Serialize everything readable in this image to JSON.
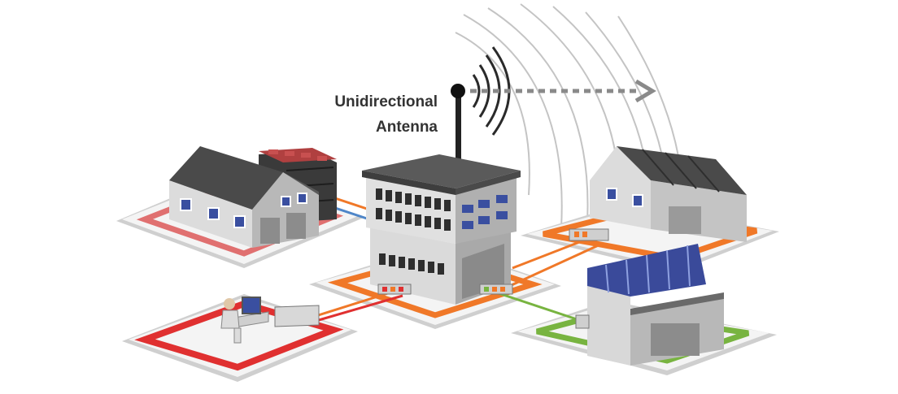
{
  "diagram": {
    "antenna_label": {
      "line1": "Unidirectional",
      "line2": "Antenna"
    }
  },
  "colors": {
    "building_front": "#d9d9d9",
    "building_side": "#a8a8a8",
    "roof": "#4a4a4a",
    "window": "#3a4fa0",
    "pad_top": "#f2f2f2",
    "pad_edge": "#9a9a9a",
    "red": "#e03030",
    "orange": "#f07828",
    "green": "#78b440",
    "blue_link": "#4f86c8",
    "solar": "#3a4a9a",
    "wave": "#bdbdbd",
    "arrow": "#8a8a8a",
    "antenna": "#222222"
  },
  "icons": {
    "antenna": "antenna-icon",
    "person": "person-at-computer-icon",
    "arrow": "dotted-arrow-icon"
  }
}
